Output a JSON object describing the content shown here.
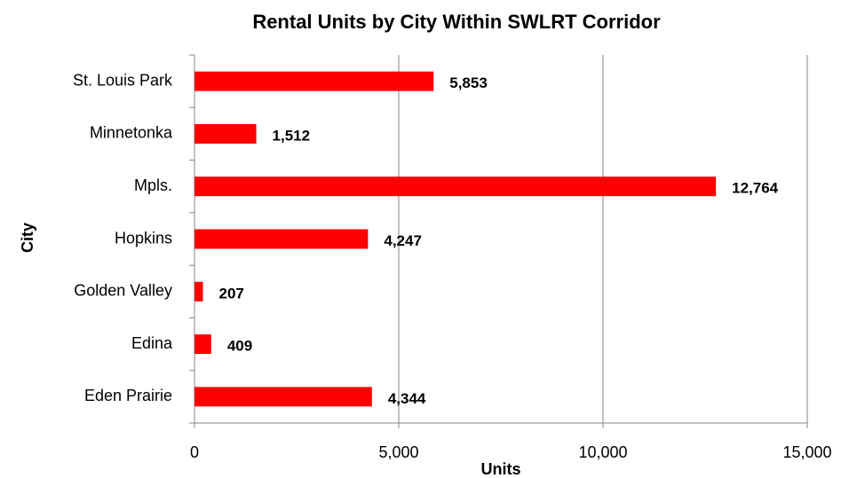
{
  "chart_data": {
    "type": "bar",
    "orientation": "horizontal",
    "title": "Rental Units by City Within SWLRT Corridor",
    "x_label": "Units",
    "y_label": "City",
    "categories": [
      "St. Louis Park",
      "Minnetonka",
      "Mpls.",
      "Hopkins",
      "Golden Valley",
      "Edina",
      "Eden Prairie"
    ],
    "values": [
      5853,
      1512,
      12764,
      4247,
      207,
      409,
      4344
    ],
    "value_labels": [
      "5,853",
      "1,512",
      "12,764",
      "4,247",
      "207",
      "409",
      "4,344"
    ],
    "color": "#ff0000",
    "xlim": [
      0,
      15000
    ],
    "xticks": [
      0,
      {
        "value": 5000,
        "label": "5,000"
      },
      {
        "value": 10000,
        "label": "10,000"
      },
      {
        "value": 15000,
        "label": "15,000"
      }
    ],
    "grid": true
  }
}
